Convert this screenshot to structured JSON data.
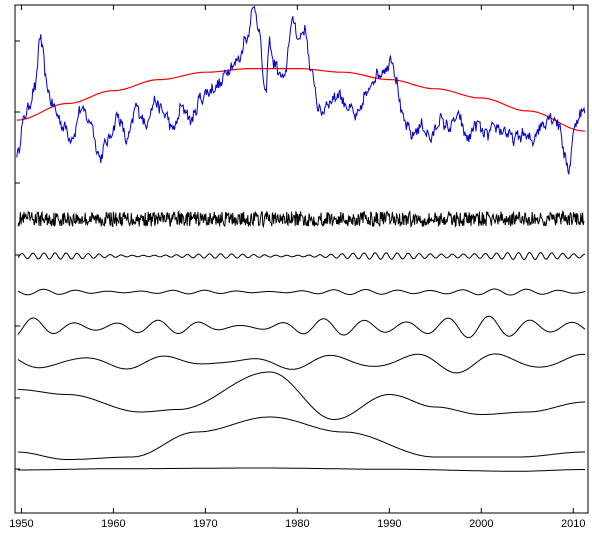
{
  "chart_data": {
    "type": "line",
    "title": "",
    "xlabel": "",
    "ylabel": "",
    "xlim": [
      1949.3,
      2011.6
    ],
    "xticks": [
      1950,
      1960,
      1970,
      1980,
      1990,
      2000,
      2010
    ],
    "tick_labels": [
      "1950",
      "1960",
      "1970",
      "1980",
      "1990",
      "2000",
      "2010"
    ],
    "grid": false,
    "legend": "none",
    "colors": {
      "series": "#0000cc",
      "trend": "#ff0000",
      "components": "#000000",
      "axes": "#000000"
    },
    "panel_top": {
      "series": [
        {
          "role": "original",
          "color": "#0000cc",
          "x": [
            1949.5,
            1950.5,
            1951.5,
            1952.0,
            1952.3,
            1952.8,
            1953.5,
            1954.5,
            1955.5,
            1956.5,
            1957.5,
            1958.5,
            1959.5,
            1960.5,
            1961.5,
            1962.5,
            1963.5,
            1964.5,
            1965.5,
            1966.5,
            1967.5,
            1968.5,
            1969.5,
            1970.5,
            1971.5,
            1972.5,
            1973.5,
            1974.5,
            1975.3,
            1975.8,
            1976.5,
            1977.0,
            1977.5,
            1978.5,
            1979.5,
            1980.2,
            1980.8,
            1981.5,
            1982.5,
            1983.5,
            1984.5,
            1985.5,
            1986.5,
            1987.5,
            1988.5,
            1989.5,
            1990.3,
            1990.8,
            1991.5,
            1992.5,
            1993.5,
            1994.5,
            1995.5,
            1996.5,
            1997.5,
            1998.5,
            1999.5,
            2000.5,
            2001.5,
            2002.5,
            2003.5,
            2004.5,
            2005.5,
            2006.5,
            2007.5,
            2008.5,
            2009.0,
            2009.5,
            2010.0,
            2010.5,
            2011.3
          ],
          "values": [
            0.2,
            0.42,
            0.55,
            0.83,
            0.76,
            0.55,
            0.45,
            0.35,
            0.28,
            0.44,
            0.37,
            0.18,
            0.28,
            0.4,
            0.27,
            0.45,
            0.36,
            0.48,
            0.42,
            0.33,
            0.45,
            0.38,
            0.5,
            0.54,
            0.57,
            0.66,
            0.7,
            0.83,
            1.0,
            0.88,
            0.52,
            0.8,
            0.68,
            0.6,
            0.92,
            0.82,
            0.88,
            0.64,
            0.42,
            0.48,
            0.52,
            0.45,
            0.4,
            0.52,
            0.62,
            0.65,
            0.72,
            0.58,
            0.38,
            0.3,
            0.35,
            0.28,
            0.38,
            0.34,
            0.4,
            0.28,
            0.36,
            0.3,
            0.34,
            0.32,
            0.28,
            0.3,
            0.27,
            0.35,
            0.4,
            0.36,
            0.2,
            0.1,
            0.3,
            0.4,
            0.44
          ]
        },
        {
          "role": "trend",
          "color": "#ff0000",
          "x": [
            1949.5,
            1955,
            1960,
            1965,
            1970,
            1975,
            1980,
            1985,
            1990,
            1995,
            2000,
            2005,
            2011.3
          ],
          "values": [
            0.38,
            0.47,
            0.54,
            0.6,
            0.64,
            0.66,
            0.66,
            0.64,
            0.6,
            0.55,
            0.5,
            0.43,
            0.32
          ]
        }
      ]
    },
    "components": [
      {
        "name": "",
        "shape": "noise",
        "period_years": 0.35,
        "amplitude": 0.03
      },
      {
        "name": "",
        "shape": "oscillation",
        "period_years": 1.2,
        "amplitude": 0.012
      },
      {
        "name": "",
        "shape": "oscillation",
        "period_years": 3.5,
        "amplitude": 0.01
      },
      {
        "name": "",
        "shape": "oscillation",
        "period_years": 4.5,
        "amplitude": 0.035
      },
      {
        "name": "",
        "shape": "oscillation",
        "period_years": 9.0,
        "amplitude": 0.035
      },
      {
        "name": "",
        "x": [
          1949.5,
          1955,
          1963,
          1967,
          1977,
          1984,
          1990,
          1995,
          2000,
          2005,
          2011.3
        ],
        "values": [
          0.05,
          0.03,
          -0.04,
          -0.03,
          0.12,
          -0.07,
          0.03,
          -0.02,
          -0.05,
          -0.04,
          0.0
        ]
      },
      {
        "name": "",
        "x": [
          1949.5,
          1955,
          1962,
          1969,
          1977,
          1985,
          1995,
          2004,
          2011.3
        ],
        "values": [
          -0.06,
          -0.09,
          -0.08,
          0.02,
          0.08,
          0.02,
          -0.08,
          -0.08,
          -0.06
        ]
      },
      {
        "name": "",
        "x": [
          1949.5,
          1960,
          1976,
          1990,
          2004,
          2011.3
        ],
        "values": [
          0.0,
          0.005,
          0.008,
          0.003,
          -0.005,
          0.002
        ]
      }
    ]
  }
}
